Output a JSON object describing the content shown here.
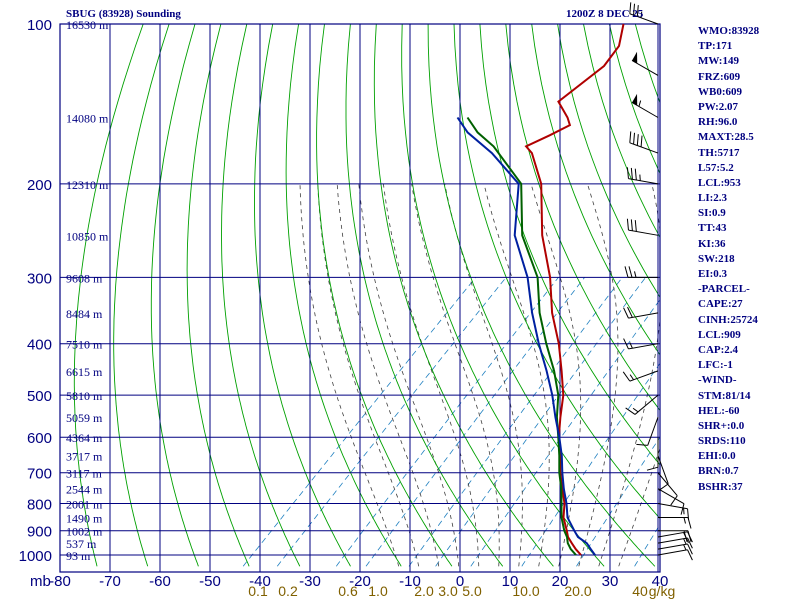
{
  "header": {
    "station": "SBUG (83928) Sounding",
    "time": "1200Z  8 DEC 25"
  },
  "indices": [
    "WMO:83928",
    "TP:171",
    "MW:149",
    "FRZ:609",
    "WB0:609",
    "PW:2.07",
    "RH:96.0",
    "MAXT:28.5",
    "TH:5717",
    "L57:5.2",
    "LCL:953",
    "LI:2.3",
    "SI:0.9",
    "TT:43",
    "KI:36",
    "SW:218",
    "EI:0.3",
    "-PARCEL-",
    "CAPE:27",
    "CINH:25724",
    "LCL:909",
    "CAP:2.4",
    "LFC:-1",
    "-WIND-",
    "STM:81/14",
    "HEL:-60",
    "SHR+:0.0",
    "SRDS:110",
    "EHI:0.0",
    "BRN:0.7",
    "BSHR:37"
  ],
  "colors": {
    "axes": "#000080",
    "dry_adiabats": "#00a000",
    "moist_adiabats": "#404040",
    "mixing_ratio": "#2080c0",
    "temperature": "#b00000",
    "dewpoint": "#006000",
    "parcel": "#0020a0",
    "mixing_ratio_labels": "#806000",
    "wind_barbs": "#000000"
  },
  "chart_data": {
    "type": "line",
    "title": "SBUG (83928) Sounding",
    "skew_t": true,
    "grid": true,
    "xlabel": "",
    "ylabel": "mb",
    "x_axis": {
      "label": "mb",
      "ticks": [
        -80,
        -70,
        -60,
        -50,
        -40,
        -30,
        -20,
        -10,
        0,
        10,
        20,
        30,
        40
      ],
      "tick_labels": [
        "-80",
        "-70",
        "-60",
        "-50",
        "-40",
        "-30",
        "-20",
        "-10",
        "0",
        "10",
        "20",
        "30",
        "40"
      ],
      "range": [
        -80,
        40
      ]
    },
    "y_axis": {
      "scale": "log",
      "ticks": [
        100,
        200,
        300,
        400,
        500,
        600,
        700,
        800,
        900,
        1000
      ],
      "tick_labels": [
        "100",
        "200",
        "300",
        "400",
        "500",
        "600",
        "700",
        "800",
        "900",
        "1000"
      ],
      "range": [
        100,
        1050
      ]
    },
    "height_labels": [
      {
        "p": 100,
        "text": "16530 m"
      },
      {
        "p": 150,
        "text": "14080 m"
      },
      {
        "p": 200,
        "text": "12310 m"
      },
      {
        "p": 250,
        "text": "10850 m"
      },
      {
        "p": 300,
        "text": "9608 m"
      },
      {
        "p": 350,
        "text": "8484 m"
      },
      {
        "p": 400,
        "text": "7510 m"
      },
      {
        "p": 450,
        "text": "6615 m"
      },
      {
        "p": 500,
        "text": "5810 m"
      },
      {
        "p": 550,
        "text": "5059 m"
      },
      {
        "p": 600,
        "text": "4364 m"
      },
      {
        "p": 650,
        "text": "3717 m"
      },
      {
        "p": 700,
        "text": "3117 m"
      },
      {
        "p": 750,
        "text": "2544 m"
      },
      {
        "p": 800,
        "text": "2001 m"
      },
      {
        "p": 850,
        "text": "1490 m"
      },
      {
        "p": 900,
        "text": "1002 m"
      },
      {
        "p": 950,
        "text": "537 m"
      },
      {
        "p": 1000,
        "text": "93 m"
      }
    ],
    "mixing_ratio_labels": [
      "0.1",
      "0.2",
      "0.6",
      "1.0",
      "2.0",
      "3.0",
      "5.0",
      "10.0",
      "20.0",
      "40",
      "g/kg"
    ],
    "series": [
      {
        "key": "temperature",
        "points": [
          [
            1000,
            24.2
          ],
          [
            975,
            22
          ],
          [
            950,
            20
          ],
          [
            925,
            18
          ],
          [
            900,
            16.5
          ],
          [
            850,
            13.2
          ],
          [
            800,
            10.6
          ],
          [
            750,
            7.2
          ],
          [
            700,
            3.6
          ],
          [
            650,
            0.2
          ],
          [
            600,
            -3.8
          ],
          [
            550,
            -7.5
          ],
          [
            500,
            -11.3
          ],
          [
            450,
            -16.5
          ],
          [
            400,
            -22.5
          ],
          [
            350,
            -30
          ],
          [
            300,
            -37.5
          ],
          [
            250,
            -47.5
          ],
          [
            200,
            -58
          ],
          [
            175,
            -66
          ],
          [
            170,
            -68.5
          ],
          [
            162,
            -66
          ],
          [
            155,
            -64
          ],
          [
            150,
            -66
          ],
          [
            140,
            -71
          ],
          [
            120,
            -69
          ],
          [
            110,
            -70
          ],
          [
            100,
            -73.5
          ]
        ]
      },
      {
        "key": "dewpoint",
        "points": [
          [
            1000,
            23.2
          ],
          [
            975,
            21
          ],
          [
            950,
            19.2
          ],
          [
            925,
            17.8
          ],
          [
            900,
            16
          ],
          [
            850,
            12.8
          ],
          [
            800,
            10
          ],
          [
            750,
            7
          ],
          [
            700,
            3.4
          ],
          [
            650,
            0
          ],
          [
            600,
            -3.9
          ],
          [
            550,
            -8.2
          ],
          [
            500,
            -12.3
          ],
          [
            450,
            -18
          ],
          [
            400,
            -25
          ],
          [
            350,
            -32.5
          ],
          [
            300,
            -40
          ],
          [
            250,
            -51.5
          ],
          [
            200,
            -62
          ],
          [
            170,
            -75
          ],
          [
            160,
            -81
          ],
          [
            150,
            -86
          ]
        ]
      },
      {
        "key": "parcel",
        "points": [
          [
            1000,
            27
          ],
          [
            975,
            25
          ],
          [
            950,
            23
          ],
          [
            925,
            20
          ],
          [
            900,
            18
          ],
          [
            850,
            14
          ],
          [
            800,
            11
          ],
          [
            750,
            7.5
          ],
          [
            700,
            4
          ],
          [
            650,
            0.5
          ],
          [
            600,
            -3.7
          ],
          [
            550,
            -8.5
          ],
          [
            500,
            -13.5
          ],
          [
            450,
            -19.5
          ],
          [
            400,
            -26.5
          ],
          [
            350,
            -34
          ],
          [
            300,
            -42
          ],
          [
            250,
            -53
          ],
          [
            200,
            -62.5
          ],
          [
            175,
            -74
          ],
          [
            160,
            -83
          ],
          [
            150,
            -88
          ]
        ]
      }
    ],
    "wind_barbs": [
      {
        "p": 1000,
        "dir": 80,
        "spd": 10
      },
      {
        "p": 975,
        "dir": 80,
        "spd": 15
      },
      {
        "p": 950,
        "dir": 80,
        "spd": 15
      },
      {
        "p": 925,
        "dir": 80,
        "spd": 20
      },
      {
        "p": 900,
        "dir": 90,
        "spd": 20
      },
      {
        "p": 850,
        "dir": 90,
        "spd": 15
      },
      {
        "p": 800,
        "dir": 100,
        "spd": 15
      },
      {
        "p": 750,
        "dir": 120,
        "spd": 10
      },
      {
        "p": 700,
        "dir": 140,
        "spd": 10
      },
      {
        "p": 650,
        "dir": 160,
        "spd": 10
      },
      {
        "p": 600,
        "dir": 180,
        "spd": 10
      },
      {
        "p": 550,
        "dir": 200,
        "spd": 10
      },
      {
        "p": 500,
        "dir": 230,
        "spd": 15
      },
      {
        "p": 450,
        "dir": 250,
        "spd": 15
      },
      {
        "p": 400,
        "dir": 260,
        "spd": 15
      },
      {
        "p": 350,
        "dir": 260,
        "spd": 20
      },
      {
        "p": 300,
        "dir": 270,
        "spd": 25
      },
      {
        "p": 250,
        "dir": 280,
        "spd": 30
      },
      {
        "p": 200,
        "dir": 280,
        "spd": 35
      },
      {
        "p": 175,
        "dir": 290,
        "spd": 40
      },
      {
        "p": 150,
        "dir": 300,
        "spd": 55
      },
      {
        "p": 125,
        "dir": 300,
        "spd": 50
      },
      {
        "p": 100,
        "dir": 290,
        "spd": 35
      }
    ]
  }
}
